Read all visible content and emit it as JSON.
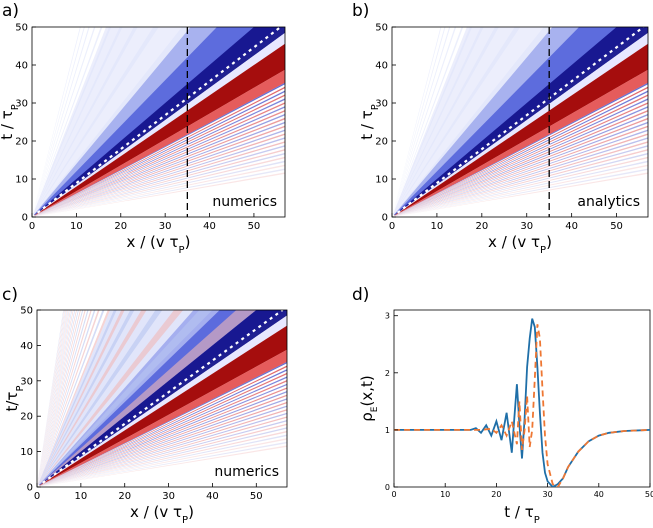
{
  "chart_data": [
    {
      "panel_label": "a)",
      "type": "heatmap",
      "xlabel": "x / (v τ_P)",
      "ylabel": "t / τ_P",
      "xlim": [
        0,
        57
      ],
      "ylim": [
        0,
        50
      ],
      "xticks": [
        "0",
        "10",
        "20",
        "30",
        "40",
        "50"
      ],
      "yticks": [
        "0",
        "10",
        "20",
        "30",
        "40",
        "50"
      ],
      "annotation": "numerics",
      "dashed_vertical_line_x": 35,
      "dotted_diagonal": "white",
      "colormap": [
        "#1a1aa0",
        "#ffffff",
        "#b40000"
      ]
    },
    {
      "panel_label": "b)",
      "type": "heatmap",
      "xlabel": "x / (v τ_P)",
      "ylabel": "t / τ_P",
      "xlim": [
        0,
        57
      ],
      "ylim": [
        0,
        50
      ],
      "xticks": [
        "0",
        "10",
        "20",
        "30",
        "40",
        "50"
      ],
      "yticks": [
        "0",
        "10",
        "20",
        "30",
        "40",
        "50"
      ],
      "annotation": "analytics",
      "dashed_vertical_line_x": 35,
      "dotted_diagonal": "white",
      "colormap": [
        "#1a1aa0",
        "#ffffff",
        "#b40000"
      ]
    },
    {
      "panel_label": "c)",
      "type": "heatmap",
      "xlabel": "x / (v τ_P)",
      "ylabel": "t/τ_P",
      "xlim": [
        0,
        57
      ],
      "ylim": [
        0,
        50
      ],
      "xticks": [
        "0",
        "10",
        "20",
        "30",
        "40",
        "50"
      ],
      "yticks": [
        "0",
        "10",
        "20",
        "30",
        "40",
        "50"
      ],
      "annotation": "numerics",
      "dotted_diagonal": "white",
      "colormap": [
        "#1a1aa0",
        "#ffffff",
        "#b40000"
      ]
    },
    {
      "panel_label": "d)",
      "type": "line",
      "xlabel": "t / τ_P",
      "ylabel": "ρ_E(x,t)",
      "xlim": [
        0,
        50
      ],
      "ylim": [
        0,
        3.1
      ],
      "xticks": [
        "0",
        "10",
        "20",
        "30",
        "40",
        "50"
      ],
      "yticks": [
        "0",
        "1",
        "2",
        "3"
      ],
      "colors": {
        "solid": "#1f6fa8",
        "dashed": "#ee7733"
      },
      "series": [
        {
          "style": "solid",
          "x": [
            0,
            15,
            16,
            17,
            18,
            19,
            20,
            21,
            22,
            23,
            23.5,
            24,
            24.5,
            25,
            25.5,
            26,
            26.5,
            27,
            27.5,
            28,
            28.5,
            29,
            29.5,
            30,
            31,
            32,
            33,
            34,
            36,
            38,
            40,
            42,
            45,
            50
          ],
          "y": [
            1.0,
            1.0,
            1.03,
            0.95,
            1.08,
            0.9,
            1.15,
            0.82,
            1.3,
            0.6,
            1.2,
            1.8,
            1.1,
            0.5,
            1.2,
            2.1,
            2.6,
            2.95,
            2.8,
            2.1,
            1.3,
            0.6,
            0.25,
            0.1,
            0.0,
            0.05,
            0.15,
            0.35,
            0.62,
            0.8,
            0.9,
            0.95,
            0.98,
            1.0
          ]
        },
        {
          "style": "dashed",
          "x": [
            0,
            15,
            17,
            19,
            20,
            21,
            22,
            23,
            24,
            24.5,
            25,
            25.5,
            26,
            26.5,
            27,
            27.5,
            28,
            28.5,
            29,
            29.5,
            30,
            31,
            32,
            33,
            34,
            36,
            38,
            40,
            42,
            45,
            50
          ],
          "y": [
            1.0,
            1.0,
            1.0,
            1.02,
            0.95,
            1.08,
            0.9,
            1.15,
            0.75,
            1.5,
            0.65,
            1.0,
            1.6,
            0.7,
            1.0,
            1.9,
            2.85,
            2.6,
            1.7,
            0.9,
            0.4,
            0.05,
            0.0,
            0.15,
            0.35,
            0.62,
            0.8,
            0.9,
            0.95,
            0.98,
            1.0
          ]
        }
      ]
    }
  ]
}
